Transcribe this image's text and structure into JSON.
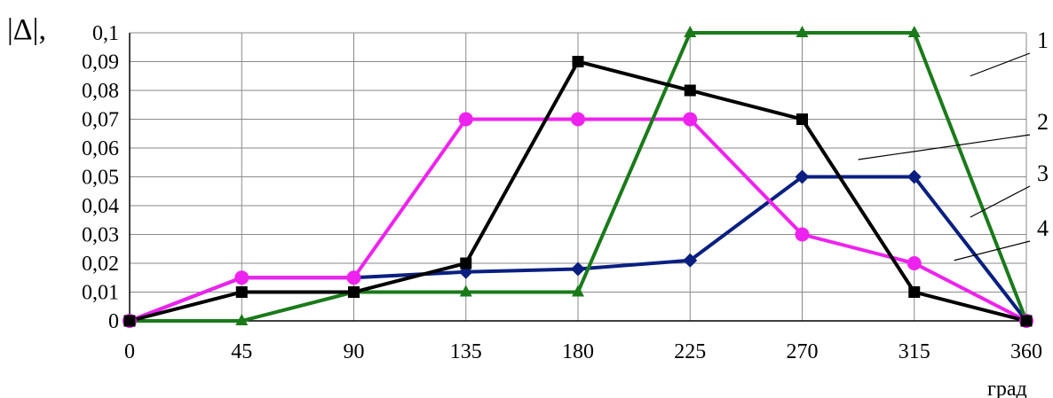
{
  "chart_data": {
    "type": "line",
    "ylabel": "|Δ|,",
    "xlabel": "град",
    "x": [
      0,
      45,
      90,
      135,
      180,
      225,
      270,
      315,
      360
    ],
    "xticks": [
      "0",
      "45",
      "90",
      "135",
      "180",
      "225",
      "270",
      "315",
      "360"
    ],
    "yticks": [
      "0",
      "0,01",
      "0,02",
      "0,03",
      "0,04",
      "0,05",
      "0,06",
      "0,07",
      "0,08",
      "0,09",
      "0,1"
    ],
    "xlim": [
      0,
      360
    ],
    "ylim": [
      0,
      0.1
    ],
    "grid": true,
    "series": [
      {
        "label": "1",
        "color": "#000000",
        "marker": "square",
        "values": [
          0,
          0.01,
          0.01,
          0.02,
          0.09,
          0.08,
          0.07,
          0.01,
          0
        ]
      },
      {
        "label": "2",
        "color": "#0a1f80",
        "marker": "diamond",
        "values": [
          0,
          0.015,
          0.015,
          0.017,
          0.018,
          0.021,
          0.05,
          0.05,
          0
        ]
      },
      {
        "label": "3",
        "color": "#1a7a1a",
        "marker": "triangle",
        "values": [
          0,
          0,
          0.01,
          0.01,
          0.01,
          0.1,
          0.1,
          0.1,
          0
        ]
      },
      {
        "label": "4",
        "color": "#ee22ee",
        "marker": "circle",
        "values": [
          0,
          0.015,
          0.015,
          0.07,
          0.07,
          0.07,
          0.03,
          0.02,
          0
        ]
      }
    ]
  }
}
